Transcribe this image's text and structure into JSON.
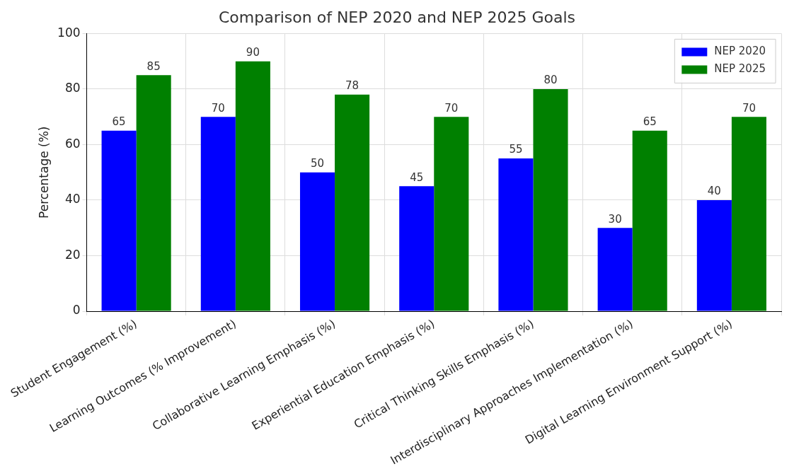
{
  "chart_data": {
    "type": "bar",
    "title": "Comparison of NEP 2020 and NEP 2025 Goals",
    "ylabel": "Percentage (%)",
    "categories": [
      "Student Engagement (%)",
      "Learning Outcomes (% Improvement)",
      "Collaborative Learning Emphasis (%)",
      "Experiential Education Emphasis (%)",
      "Critical Thinking Skills Emphasis (%)",
      "Interdisciplinary Approaches Implementation (%)",
      "Digital Learning Environment Support (%)"
    ],
    "series": [
      {
        "name": "NEP 2020",
        "color": "#0000ff",
        "values": [
          65,
          70,
          50,
          45,
          55,
          30,
          40
        ]
      },
      {
        "name": "NEP 2025",
        "color": "#008000",
        "values": [
          85,
          90,
          78,
          70,
          80,
          65,
          70
        ]
      }
    ],
    "ylim": [
      0,
      100
    ],
    "yticks": [
      0,
      20,
      40,
      60,
      80,
      100
    ],
    "grid": true,
    "legend": "top right",
    "data_labels": true
  }
}
